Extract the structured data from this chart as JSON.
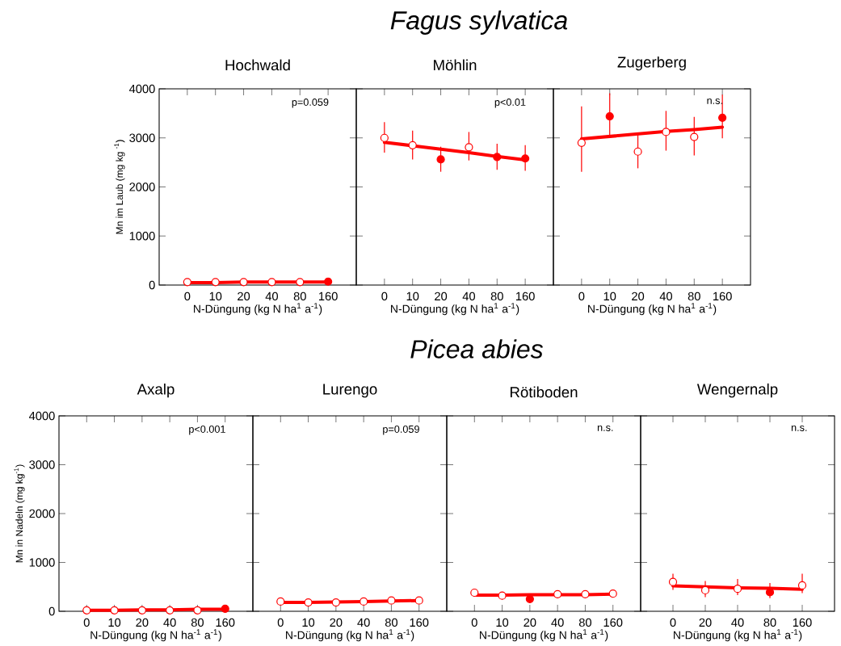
{
  "chart_data": [
    {
      "type": "scatter",
      "subtitle": "Hochwald",
      "xlabel": "N-Düngung (kg N ha$^{1}$ a$^{-1}$)",
      "ylabel": "Mn im Laub (mg kg $^{-1}$)",
      "categories": [
        "0",
        "10",
        "20",
        "40",
        "80",
        "160"
      ],
      "ylim": [
        0,
        4000
      ],
      "yticks": [
        0,
        1000,
        2000,
        3000,
        4000
      ],
      "annotations": [
        "p=0.059"
      ],
      "series": [
        {
          "marker": "circle",
          "color": "#ff0000",
          "values": [
            60,
            60,
            60,
            60,
            60,
            null
          ]
        },
        {
          "marker": "circle",
          "color": "#ff0000",
          "values": [
            null,
            null,
            null,
            null,
            null,
            70
          ]
        },
        {
          "type": "line",
          "color": "#ff0000",
          "values": [
            50,
            50,
            60,
            60,
            60,
            60
          ]
        }
      ]
    },
    {
      "type": "scatter",
      "title": "*Fagus sylvatica*",
      "subtitle": "Möhlin",
      "xlabel": "N-Düngung (kg N ha$^{1}$ a$^{-1}$)",
      "categories": [
        "0",
        "10",
        "20",
        "40",
        "80",
        "160"
      ],
      "ylim": [
        0,
        4000
      ],
      "yticks": [
        0,
        1000,
        2000,
        3000,
        4000
      ],
      "tick_labels": "x",
      "annotations": [
        "p<0.01"
      ],
      "series": [
        {
          "marker": "circle",
          "color": "#ff0000",
          "values": [
            3000,
            2850,
            null,
            2810,
            null,
            null
          ],
          "errors": [
            [
              2700,
              3320
            ],
            [
              2560,
              3150
            ],
            null,
            [
              2540,
              3120
            ],
            null,
            null
          ]
        },
        {
          "marker": "circle",
          "color": "#ff0000",
          "values": [
            null,
            null,
            2560,
            null,
            2610,
            2580
          ],
          "errors": [
            null,
            null,
            [
              2310,
              2820
            ],
            null,
            [
              2350,
              2880
            ],
            [
              2330,
              2850
            ]
          ]
        },
        {
          "type": "line",
          "color": "#ff0000",
          "values": [
            2910,
            2840,
            2770,
            2700,
            2620,
            2550
          ]
        }
      ]
    },
    {
      "type": "scatter",
      "subtitle": "Zugerberg",
      "xlabel": "N-Düngung (kg N ha$^{1}$ a$^{-1}$)",
      "categories": [
        "0",
        "10",
        "20",
        "40",
        "80",
        "160"
      ],
      "ylim": [
        0,
        4000
      ],
      "yticks": [
        0,
        1000,
        2000,
        3000,
        4000
      ],
      "tick_labels": "x",
      "annotations": [
        "n.s."
      ],
      "series": [
        {
          "marker": "circle",
          "color": "#ff0000",
          "values": [
            2900,
            null,
            2720,
            3120,
            3020,
            null
          ],
          "errors": [
            [
              2310,
              3640
            ],
            null,
            [
              2380,
              3060
            ],
            [
              2740,
              3550
            ],
            [
              2640,
              3430
            ],
            null
          ]
        },
        {
          "marker": "circle",
          "color": "#ff0000",
          "values": [
            null,
            3440,
            null,
            null,
            null,
            3410
          ],
          "errors": [
            null,
            [
              3040,
              3910
            ],
            null,
            null,
            null,
            [
              2990,
              3880
            ]
          ]
        },
        {
          "type": "line",
          "color": "#ff0000",
          "values": [
            2980,
            3030,
            3080,
            3130,
            3170,
            3220
          ]
        }
      ]
    },
    {
      "type": "scatter",
      "subtitle": "Axalp",
      "xlabel": "N-Düngung (kg N ha$^{-1}$ a$^{-1}$)",
      "ylabel": "Mn in Nadeln (mg kg$^{-1}$)",
      "categories": [
        "0",
        "10",
        "20",
        "40",
        "80",
        "160"
      ],
      "ylim": [
        0,
        4000
      ],
      "yticks": [
        0,
        1000,
        2000,
        3000,
        4000
      ],
      "annotations": [
        "p<0.001"
      ],
      "series": [
        {
          "marker": "circle",
          "color": "#ff0000",
          "values": [
            20,
            20,
            20,
            20,
            20,
            null
          ]
        },
        {
          "marker": "circle",
          "color": "#ff0000",
          "values": [
            null,
            null,
            null,
            null,
            null,
            50
          ]
        },
        {
          "type": "line",
          "color": "#ff0000",
          "values": [
            20,
            20,
            30,
            30,
            40,
            40
          ]
        }
      ]
    },
    {
      "type": "scatter",
      "subtitle": "Lurengo",
      "xlabel": "N-Düngung (kg N ha$^{1}$ a$^{-1}$)",
      "categories": [
        "0",
        "10",
        "20",
        "40",
        "80",
        "160"
      ],
      "ylim": [
        0,
        4000
      ],
      "yticks": [
        0,
        1000,
        2000,
        3000,
        4000
      ],
      "tick_labels": "x",
      "annotations": [
        "p=0.059"
      ],
      "series": [
        {
          "marker": "circle",
          "color": "#ff0000",
          "values": [
            200,
            180,
            180,
            200,
            220,
            220
          ],
          "errors": [
            40,
            40,
            40,
            40,
            40,
            40
          ]
        },
        {
          "type": "line",
          "color": "#ff0000",
          "values": [
            180,
            180,
            190,
            200,
            210,
            220
          ]
        }
      ]
    },
    {
      "type": "scatter",
      "title": "*Picea abies*",
      "subtitle": "Rötiboden",
      "xlabel": "N-Düngung (kg N ha$^{1}$ a$^{-1}$)",
      "categories": [
        "0",
        "10",
        "20",
        "40",
        "80",
        "160"
      ],
      "ylim": [
        0,
        4000
      ],
      "yticks": [
        0,
        1000,
        2000,
        3000,
        4000
      ],
      "tick_labels": "x",
      "annotations": [
        "n.s."
      ],
      "series": [
        {
          "marker": "circle",
          "color": "#ff0000",
          "values": [
            380,
            320,
            null,
            350,
            350,
            360
          ],
          "errors": [
            80,
            80,
            null,
            80,
            80,
            80
          ]
        },
        {
          "marker": "circle",
          "color": "#ff0000",
          "values": [
            null,
            null,
            250,
            null,
            null,
            null
          ]
        },
        {
          "type": "line",
          "color": "#ff0000",
          "values": [
            330,
            330,
            340,
            340,
            340,
            350
          ]
        }
      ]
    },
    {
      "type": "scatter",
      "subtitle": "Wengernalp",
      "xlabel": "N-Düngung (kg N ha$^{1}$ a$^{-1}$)",
      "categories": [
        "0",
        "20",
        "40",
        "80",
        "160"
      ],
      "ylim": [
        0,
        4000
      ],
      "yticks": [
        0,
        1000,
        2000,
        3000,
        4000
      ],
      "tick_labels": "x",
      "annotations": [
        "n.s."
      ],
      "series": [
        {
          "marker": "circle",
          "color": "#ff0000",
          "values": [
            600,
            430,
            460,
            null,
            530
          ],
          "errors": [
            [
              440,
              770
            ],
            [
              290,
              620
            ],
            [
              330,
              660
            ],
            null,
            [
              370,
              770
            ]
          ]
        },
        {
          "marker": "circle",
          "color": "#ff0000",
          "values": [
            null,
            null,
            null,
            390,
            null
          ],
          "errors": [
            null,
            null,
            null,
            [
              270,
              580
            ],
            null
          ]
        },
        {
          "type": "line",
          "color": "#ff0000",
          "values": [
            520,
            500,
            480,
            470,
            450
          ]
        }
      ]
    }
  ]
}
